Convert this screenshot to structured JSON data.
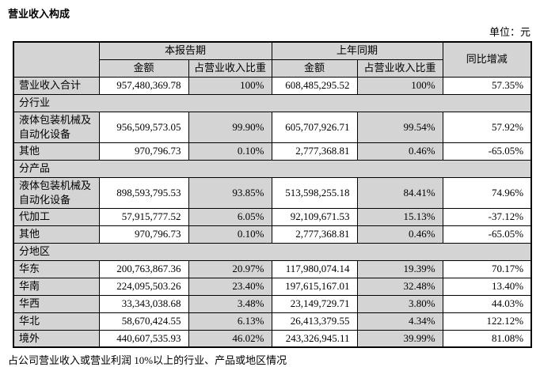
{
  "page": {
    "title": "营业收入构成",
    "unit_label": "单位：元",
    "footer": "占公司营业收入或营业利润 10%以上的行业、产品或地区情况"
  },
  "colors": {
    "shaded_cell": "#d4d4d4",
    "border": "#000000"
  },
  "table": {
    "header": {
      "current_period": "本报告期",
      "prior_period": "上年同期",
      "yoy_change": "同比增减",
      "amount": "金额",
      "proportion": "占营业收入比重"
    },
    "rows": [
      {
        "type": "data",
        "label": "营业收入合计",
        "cur_amount": "957,480,369.78",
        "cur_pct": "100%",
        "prior_amount": "608,485,295.52",
        "prior_pct": "100%",
        "yoy": "57.35%"
      },
      {
        "type": "section",
        "label": "分行业"
      },
      {
        "type": "data",
        "label": "液体包装机械及自动化设备",
        "cur_amount": "956,509,573.05",
        "cur_pct": "99.90%",
        "prior_amount": "605,707,926.71",
        "prior_pct": "99.54%",
        "yoy": "57.92%"
      },
      {
        "type": "data",
        "label": "其他",
        "cur_amount": "970,796.73",
        "cur_pct": "0.10%",
        "prior_amount": "2,777,368.81",
        "prior_pct": "0.46%",
        "yoy": "-65.05%"
      },
      {
        "type": "section",
        "label": "分产品"
      },
      {
        "type": "data",
        "label": "液体包装机械及自动化设备",
        "cur_amount": "898,593,795.53",
        "cur_pct": "93.85%",
        "prior_amount": "513,598,255.18",
        "prior_pct": "84.41%",
        "yoy": "74.96%"
      },
      {
        "type": "data",
        "label": "代加工",
        "cur_amount": "57,915,777.52",
        "cur_pct": "6.05%",
        "prior_amount": "92,109,671.53",
        "prior_pct": "15.13%",
        "yoy": "-37.12%"
      },
      {
        "type": "data",
        "label": "其他",
        "cur_amount": "970,796.73",
        "cur_pct": "0.10%",
        "prior_amount": "2,777,368.81",
        "prior_pct": "0.46%",
        "yoy": "-65.05%"
      },
      {
        "type": "section",
        "label": "分地区"
      },
      {
        "type": "data",
        "label": "华东",
        "cur_amount": "200,763,867.36",
        "cur_pct": "20.97%",
        "prior_amount": "117,980,074.14",
        "prior_pct": "19.39%",
        "yoy": "70.17%"
      },
      {
        "type": "data",
        "label": "华南",
        "cur_amount": "224,095,503.26",
        "cur_pct": "23.40%",
        "prior_amount": "197,615,167.01",
        "prior_pct": "32.48%",
        "yoy": "13.40%"
      },
      {
        "type": "data",
        "label": "华西",
        "cur_amount": "33,343,038.68",
        "cur_pct": "3.48%",
        "prior_amount": "23,149,729.71",
        "prior_pct": "3.80%",
        "yoy": "44.03%"
      },
      {
        "type": "data",
        "label": "华北",
        "cur_amount": "58,670,424.55",
        "cur_pct": "6.13%",
        "prior_amount": "26,413,379.55",
        "prior_pct": "4.34%",
        "yoy": "122.12%"
      },
      {
        "type": "data",
        "label": "境外",
        "cur_amount": "440,607,535.93",
        "cur_pct": "46.02%",
        "prior_amount": "243,326,945.11",
        "prior_pct": "39.99%",
        "yoy": "81.08%"
      }
    ]
  }
}
